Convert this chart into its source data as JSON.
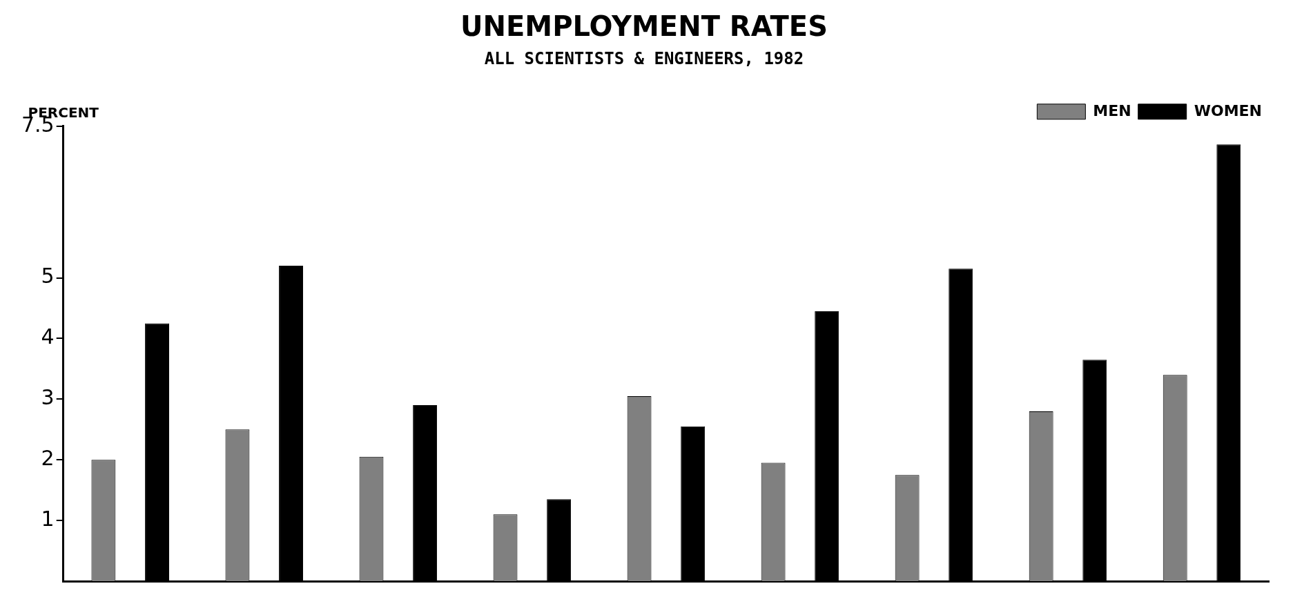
{
  "chart_data": {
    "type": "bar",
    "title": "UNEMPLOYMENT RATES",
    "subtitle": "ALL SCIENTISTS & ENGINEERS, 1982",
    "ylabel": "PERCENT",
    "categories": [
      null,
      null,
      null,
      null,
      null,
      null,
      null,
      null,
      null
    ],
    "series": [
      {
        "name": "MEN",
        "color": "#808080",
        "values": [
          2.0,
          2.5,
          2.05,
          1.1,
          3.05,
          1.95,
          1.75,
          2.8,
          3.4
        ]
      },
      {
        "name": "WOMEN",
        "color": "#000000",
        "values": [
          4.25,
          5.2,
          2.9,
          1.35,
          2.55,
          4.45,
          5.15,
          3.65,
          7.2
        ]
      }
    ],
    "ylim": [
      0,
      7.5
    ],
    "yticks": [
      1,
      2,
      3,
      4,
      5,
      7.5
    ],
    "grid": false,
    "legend": "top right",
    "tick_labels": "y"
  }
}
